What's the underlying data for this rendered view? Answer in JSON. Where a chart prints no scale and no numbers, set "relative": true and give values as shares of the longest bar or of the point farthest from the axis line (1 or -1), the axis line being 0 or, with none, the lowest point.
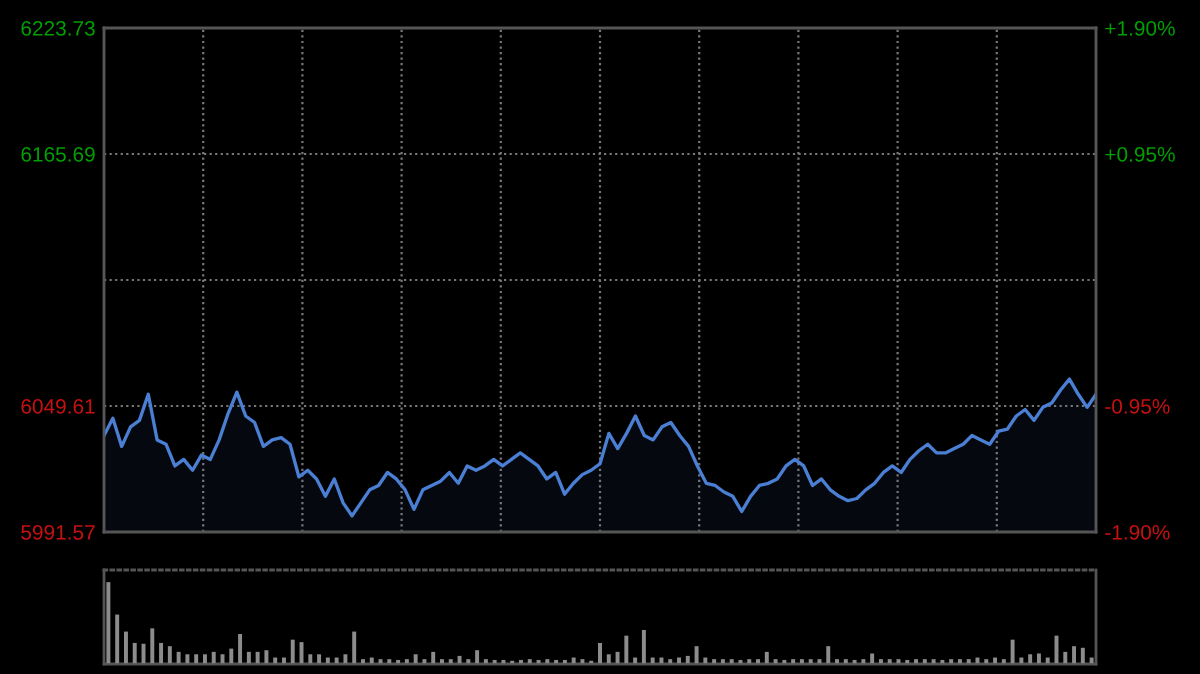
{
  "chart_data": [
    {
      "type": "area",
      "categories": [
        null,
        null,
        null,
        null,
        null,
        null,
        null,
        null,
        null,
        null,
        null,
        null,
        null,
        null,
        null,
        null,
        null,
        null,
        null,
        null,
        null,
        null,
        null,
        null,
        null,
        null,
        null,
        null,
        null,
        null,
        null,
        null,
        null,
        null,
        null,
        null,
        null,
        null,
        null,
        null,
        null,
        null,
        null,
        null,
        null,
        null,
        null,
        null,
        null,
        null,
        null,
        null,
        null,
        null,
        null,
        null,
        null,
        null,
        null,
        null,
        null,
        null,
        null,
        null,
        null,
        null,
        null,
        null,
        null,
        null,
        null,
        null,
        null,
        null,
        null,
        null,
        null,
        null,
        null,
        null,
        null,
        null,
        null,
        null,
        null,
        null,
        null,
        null,
        null,
        null,
        null,
        null,
        null,
        null,
        null,
        null,
        null,
        null,
        null,
        null,
        null,
        null,
        null,
        null,
        null,
        null,
        null,
        null,
        null,
        null,
        null,
        null,
        null
      ],
      "series": [
        {
          "color": "#4a7fd4",
          "values": [
            6036,
            6044,
            6031,
            6040,
            6043,
            6055,
            6034,
            6032,
            6022,
            6025,
            6020,
            6027,
            6025,
            6034,
            6046,
            6056,
            6045,
            6042,
            6031,
            6034,
            6035,
            6032,
            6017,
            6020,
            6016,
            6008,
            6016,
            6005,
            5999,
            6005,
            6011,
            6013,
            6019,
            6016,
            6011,
            6002,
            6011,
            6013,
            6015,
            6019,
            6014,
            6022,
            6020,
            6022,
            6025,
            6022,
            6025,
            6028,
            6025,
            6022,
            6016,
            6019,
            6009,
            6014,
            6018,
            6020,
            6023,
            6037,
            6030,
            6037,
            6045,
            6036,
            6034,
            6040,
            6042,
            6036,
            6031,
            6022,
            6014,
            6013,
            6010,
            6008,
            6001,
            6008,
            6013,
            6014,
            6016,
            6022,
            6025,
            6022,
            6013,
            6016,
            6011,
            6008,
            6006,
            6007,
            6011,
            6014,
            6019,
            6022,
            6019,
            6025,
            6029,
            6032,
            6028,
            6028,
            6030,
            6032,
            6036,
            6034,
            6032,
            6038,
            6039,
            6045,
            6048,
            6043,
            6049,
            6051,
            6057,
            6062,
            6055,
            6049,
            6055
          ]
        }
      ],
      "ylim": [
        5991.57,
        6223.73
      ],
      "yticks": [
        5991.57,
        6049.61,
        {
          "value": 6107.65,
          "label": null
        },
        6165.69,
        6223.73
      ],
      "y2lim": [
        -1.9,
        1.9
      ],
      "y2ticks": [
        {
          "value": -1.9,
          "label": "-1.90%"
        },
        {
          "value": -0.95,
          "label": "-0.95%"
        },
        {
          "value": 0,
          "label": null
        },
        {
          "value": 0.95,
          "label": "+0.95%"
        },
        {
          "value": 1.9,
          "label": "+1.90%"
        }
      ],
      "grid": true,
      "tick_labels": "y"
    },
    {
      "type": "bar",
      "relative": true,
      "color": "#8c8c8c",
      "categories": [
        null,
        null,
        null,
        null,
        null,
        null,
        null,
        null,
        null,
        null,
        null,
        null,
        null,
        null,
        null,
        null,
        null,
        null,
        null,
        null,
        null,
        null,
        null,
        null,
        null,
        null,
        null,
        null,
        null,
        null,
        null,
        null,
        null,
        null,
        null,
        null,
        null,
        null,
        null,
        null,
        null,
        null,
        null,
        null,
        null,
        null,
        null,
        null,
        null,
        null,
        null,
        null,
        null,
        null,
        null,
        null,
        null,
        null,
        null,
        null,
        null,
        null,
        null,
        null,
        null,
        null,
        null,
        null,
        null,
        null,
        null,
        null,
        null,
        null,
        null,
        null,
        null,
        null,
        null,
        null,
        null,
        null,
        null,
        null,
        null,
        null,
        null,
        null,
        null,
        null,
        null,
        null,
        null,
        null,
        null,
        null,
        null,
        null,
        null,
        null,
        null,
        null,
        null,
        null,
        null,
        null,
        null,
        null,
        null,
        null,
        null,
        null,
        null
      ],
      "values": [
        1.0,
        0.6,
        0.39,
        0.25,
        0.24,
        0.43,
        0.25,
        0.21,
        0.14,
        0.11,
        0.11,
        0.11,
        0.14,
        0.11,
        0.18,
        0.36,
        0.14,
        0.14,
        0.16,
        0.07,
        0.07,
        0.29,
        0.26,
        0.11,
        0.11,
        0.07,
        0.07,
        0.11,
        0.39,
        0.05,
        0.07,
        0.05,
        0.05,
        0.04,
        0.05,
        0.11,
        0.05,
        0.14,
        0.05,
        0.05,
        0.09,
        0.05,
        0.16,
        0.05,
        0.04,
        0.04,
        0.03,
        0.04,
        0.05,
        0.04,
        0.05,
        0.04,
        0.04,
        0.07,
        0.05,
        0.03,
        0.25,
        0.11,
        0.14,
        0.34,
        0.07,
        0.41,
        0.07,
        0.07,
        0.05,
        0.07,
        0.09,
        0.21,
        0.07,
        0.05,
        0.05,
        0.05,
        0.04,
        0.05,
        0.05,
        0.14,
        0.05,
        0.04,
        0.05,
        0.05,
        0.05,
        0.05,
        0.21,
        0.05,
        0.05,
        0.04,
        0.05,
        0.12,
        0.05,
        0.05,
        0.05,
        0.04,
        0.05,
        0.05,
        0.05,
        0.04,
        0.05,
        0.05,
        0.05,
        0.07,
        0.05,
        0.07,
        0.05,
        0.29,
        0.07,
        0.11,
        0.12,
        0.07,
        0.34,
        0.14,
        0.21,
        0.19,
        0.07
      ]
    }
  ]
}
